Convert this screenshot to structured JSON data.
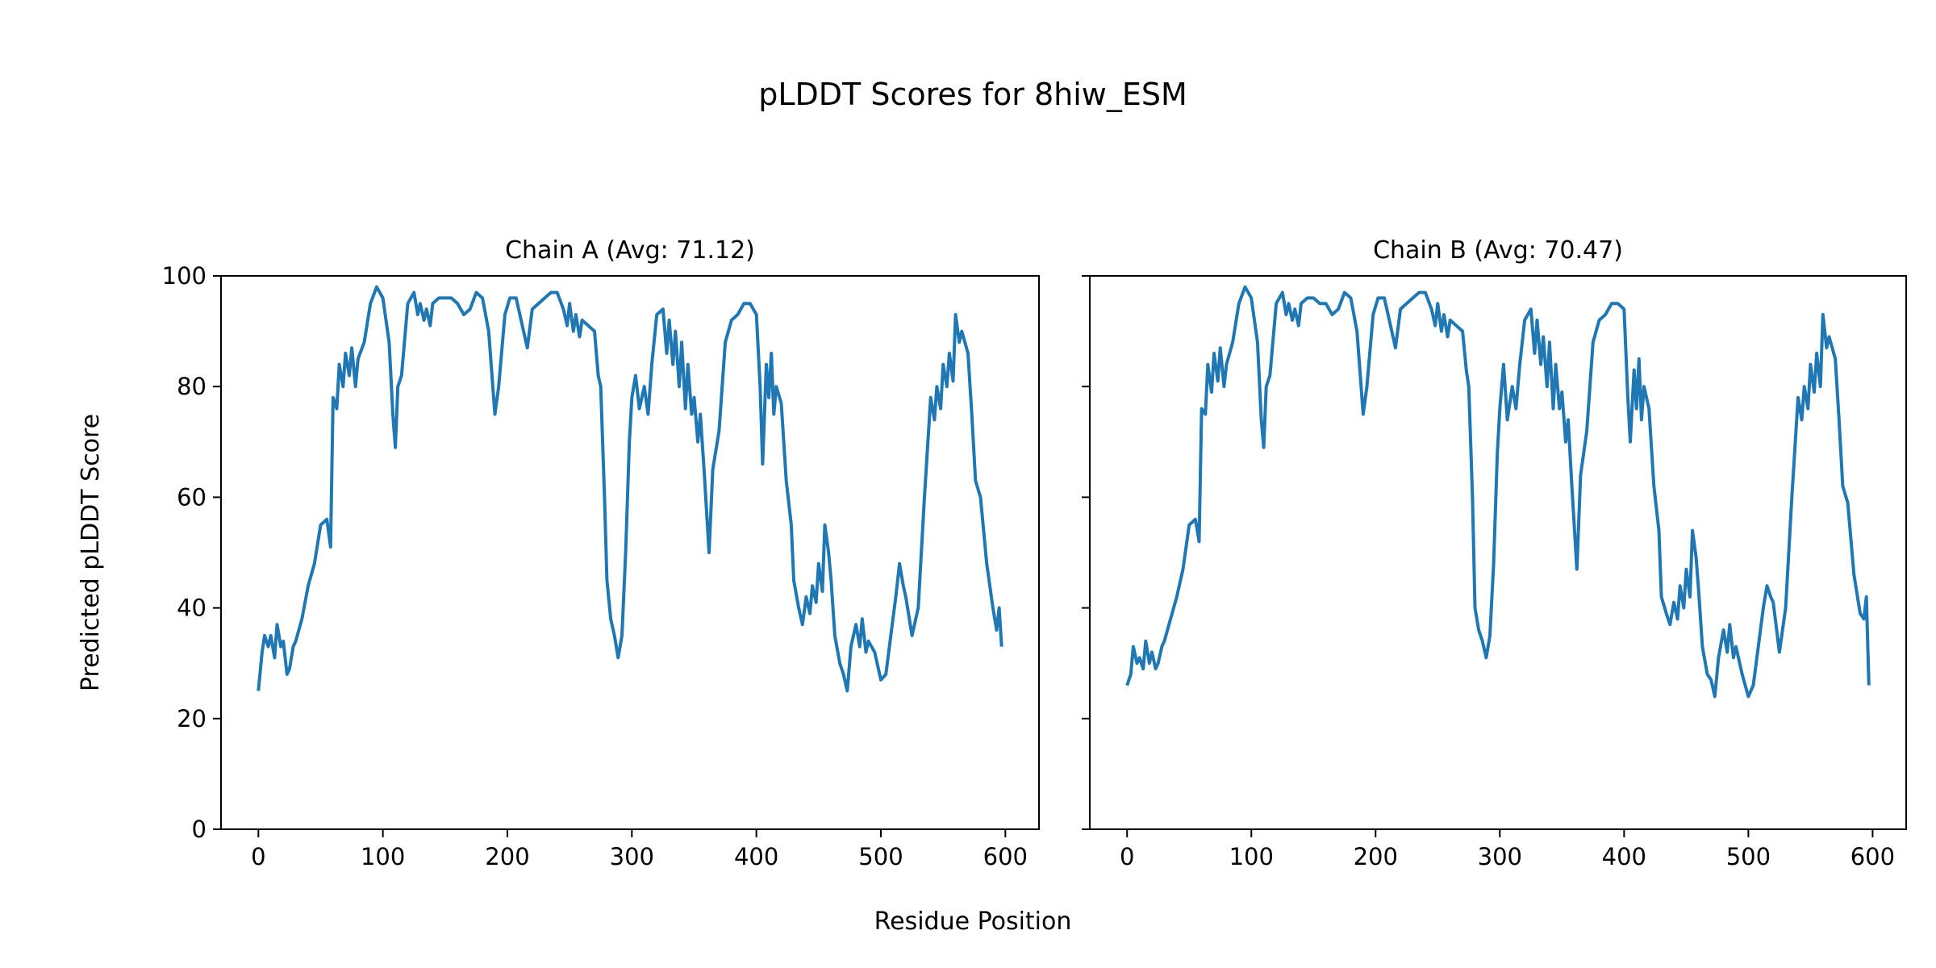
{
  "chart_data": {
    "type": "line",
    "title": "pLDDT Scores for 8hiw_ESM",
    "xlabel": "Residue Position",
    "ylabel": "Predicted pLDDT Score",
    "ylim": [
      0,
      100
    ],
    "xlim": [
      -30,
      627
    ],
    "xticks": [
      0,
      100,
      200,
      300,
      400,
      500,
      600
    ],
    "yticks": [
      0,
      20,
      40,
      60,
      80,
      100
    ],
    "line_color": "#1f77b4",
    "panels": [
      {
        "title": "Chain A (Avg: 71.12)",
        "x": [
          0,
          3,
          5,
          8,
          10,
          13,
          15,
          18,
          20,
          23,
          25,
          28,
          30,
          35,
          40,
          45,
          50,
          55,
          58,
          60,
          63,
          65,
          68,
          70,
          73,
          75,
          78,
          80,
          85,
          90,
          95,
          100,
          105,
          108,
          110,
          112,
          115,
          120,
          125,
          128,
          130,
          133,
          135,
          138,
          140,
          145,
          150,
          155,
          160,
          165,
          170,
          175,
          180,
          185,
          190,
          193,
          198,
          202,
          207,
          212,
          216,
          220,
          225,
          230,
          235,
          240,
          245,
          248,
          250,
          253,
          255,
          258,
          260,
          265,
          270,
          273,
          275,
          278,
          280,
          283,
          286,
          289,
          292,
          295,
          298,
          300,
          303,
          306,
          310,
          313,
          316,
          320,
          325,
          328,
          330,
          333,
          335,
          338,
          340,
          343,
          345,
          348,
          350,
          353,
          355,
          358,
          362,
          365,
          370,
          375,
          380,
          385,
          390,
          395,
          400,
          403,
          405,
          408,
          410,
          412,
          414,
          416,
          420,
          424,
          428,
          430,
          434,
          437,
          440,
          443,
          445,
          448,
          450,
          453,
          455,
          458,
          460,
          463,
          467,
          470,
          473,
          476,
          480,
          483,
          485,
          488,
          490,
          495,
          500,
          504,
          508,
          512,
          515,
          518,
          520,
          525,
          530,
          535,
          540,
          543,
          545,
          548,
          550,
          553,
          555,
          558,
          560,
          563,
          565,
          570,
          573,
          576,
          580,
          585,
          590,
          593,
          595,
          597
        ],
        "y": [
          25,
          32,
          35,
          33,
          35,
          31,
          37,
          33,
          34,
          28,
          29,
          33,
          34,
          38,
          44,
          48,
          55,
          56,
          51,
          78,
          76,
          84,
          80,
          86,
          82,
          87,
          80,
          85,
          88,
          95,
          98,
          96,
          88,
          75,
          69,
          80,
          82,
          95,
          97,
          93,
          95,
          92,
          94,
          91,
          95,
          96,
          96,
          96,
          95,
          93,
          94,
          97,
          96,
          90,
          75,
          80,
          93,
          96,
          96,
          91,
          87,
          94,
          95,
          96,
          97,
          97,
          94,
          91,
          95,
          90,
          93,
          89,
          92,
          91,
          90,
          82,
          80,
          60,
          45,
          38,
          35,
          31,
          35,
          50,
          70,
          78,
          82,
          76,
          80,
          75,
          84,
          93,
          94,
          86,
          92,
          84,
          90,
          80,
          88,
          76,
          84,
          75,
          78,
          70,
          75,
          65,
          50,
          65,
          72,
          88,
          92,
          93,
          95,
          95,
          93,
          80,
          66,
          84,
          78,
          86,
          75,
          80,
          77,
          63,
          55,
          45,
          40,
          37,
          42,
          39,
          44,
          41,
          48,
          43,
          55,
          50,
          45,
          35,
          30,
          28,
          25,
          33,
          37,
          33,
          38,
          32,
          34,
          32,
          27,
          28,
          35,
          42,
          48,
          44,
          42,
          35,
          40,
          60,
          78,
          74,
          80,
          76,
          84,
          80,
          86,
          81,
          93,
          88,
          90,
          86,
          75,
          63,
          60,
          48,
          40,
          36,
          40,
          33
        ]
      },
      {
        "title": "Chain B (Avg: 70.47)",
        "x": [
          0,
          3,
          5,
          8,
          10,
          13,
          15,
          18,
          20,
          23,
          25,
          28,
          30,
          35,
          40,
          45,
          50,
          55,
          58,
          60,
          63,
          65,
          68,
          70,
          73,
          75,
          78,
          80,
          85,
          90,
          95,
          100,
          105,
          108,
          110,
          112,
          115,
          120,
          125,
          128,
          130,
          133,
          135,
          138,
          140,
          145,
          150,
          155,
          160,
          165,
          170,
          175,
          180,
          185,
          190,
          193,
          198,
          202,
          207,
          212,
          216,
          220,
          225,
          230,
          235,
          240,
          245,
          248,
          250,
          253,
          255,
          258,
          260,
          265,
          270,
          273,
          275,
          278,
          280,
          283,
          286,
          289,
          292,
          295,
          298,
          300,
          303,
          306,
          310,
          313,
          316,
          320,
          325,
          328,
          330,
          333,
          335,
          338,
          340,
          343,
          345,
          348,
          350,
          353,
          355,
          358,
          362,
          365,
          370,
          375,
          380,
          385,
          390,
          395,
          400,
          403,
          405,
          408,
          410,
          412,
          414,
          416,
          420,
          424,
          428,
          430,
          434,
          437,
          440,
          443,
          445,
          448,
          450,
          453,
          455,
          458,
          460,
          463,
          467,
          470,
          473,
          476,
          480,
          483,
          485,
          488,
          490,
          495,
          500,
          504,
          508,
          512,
          515,
          518,
          520,
          525,
          530,
          535,
          540,
          543,
          545,
          548,
          550,
          553,
          555,
          558,
          560,
          563,
          565,
          570,
          573,
          576,
          580,
          585,
          590,
          593,
          595,
          597
        ],
        "y": [
          26,
          28,
          33,
          30,
          31,
          29,
          34,
          30,
          32,
          29,
          30,
          33,
          34,
          38,
          42,
          47,
          55,
          56,
          52,
          76,
          75,
          84,
          79,
          86,
          81,
          87,
          80,
          84,
          88,
          95,
          98,
          96,
          88,
          74,
          69,
          80,
          82,
          95,
          97,
          93,
          95,
          92,
          94,
          91,
          95,
          96,
          96,
          95,
          95,
          93,
          94,
          97,
          96,
          90,
          75,
          80,
          93,
          96,
          96,
          91,
          87,
          94,
          95,
          96,
          97,
          97,
          94,
          91,
          95,
          90,
          93,
          89,
          92,
          91,
          90,
          83,
          80,
          60,
          40,
          36,
          34,
          31,
          35,
          48,
          68,
          76,
          84,
          74,
          80,
          76,
          84,
          92,
          94,
          86,
          92,
          84,
          89,
          80,
          88,
          76,
          84,
          76,
          79,
          70,
          74,
          62,
          47,
          64,
          72,
          88,
          92,
          93,
          95,
          95,
          94,
          78,
          70,
          83,
          76,
          85,
          74,
          80,
          76,
          62,
          54,
          42,
          39,
          37,
          41,
          38,
          44,
          40,
          47,
          42,
          54,
          49,
          43,
          33,
          28,
          27,
          24,
          31,
          36,
          32,
          37,
          31,
          33,
          28,
          24,
          26,
          33,
          40,
          44,
          42,
          41,
          32,
          40,
          60,
          78,
          74,
          80,
          76,
          84,
          79,
          86,
          80,
          93,
          87,
          89,
          85,
          74,
          62,
          59,
          46,
          39,
          38,
          42,
          26
        ]
      }
    ]
  }
}
